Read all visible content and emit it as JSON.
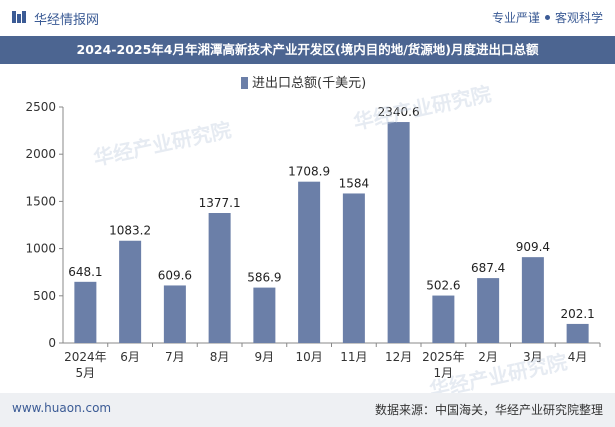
{
  "header": {
    "brand": "华经情报网",
    "tag_left": "专业严谨",
    "tag_right": "客观科学"
  },
  "watermark": "华经产业研究院",
  "footer": {
    "url": "www.huaon.com",
    "source": "数据来源：中国海关，华经产业研究院整理"
  },
  "colors": {
    "bar": "#6b7fa8",
    "title_bg": "#4c6591",
    "brand": "#3b5b95"
  },
  "chart_data": {
    "type": "bar",
    "title": "2024-2025年4月年湘潭高新技术产业开发区(境内目的地/货源地)月度进出口总额",
    "legend": "进出口总额(千美元)",
    "legend_position": "top-center",
    "categories": [
      "2024年\n5月",
      "6月",
      "7月",
      "8月",
      "9月",
      "10月",
      "11月",
      "12月",
      "2025年\n1月",
      "2月",
      "3月",
      "4月"
    ],
    "values": [
      648.1,
      1083.2,
      609.6,
      1377.1,
      586.9,
      1708.9,
      1584,
      2340.6,
      502.6,
      687.4,
      909.4,
      202.1
    ],
    "value_labels": [
      "648.1",
      "1083.2",
      "609.6",
      "1377.1",
      "586.9",
      "1708.9",
      "1584",
      "2340.6",
      "502.6",
      "687.4",
      "909.4",
      "202.1"
    ],
    "ylim": [
      0,
      2500
    ],
    "yticks": [
      0,
      500,
      1000,
      1500,
      2000,
      2500
    ],
    "grid": false,
    "xlabel": "",
    "ylabel": ""
  }
}
